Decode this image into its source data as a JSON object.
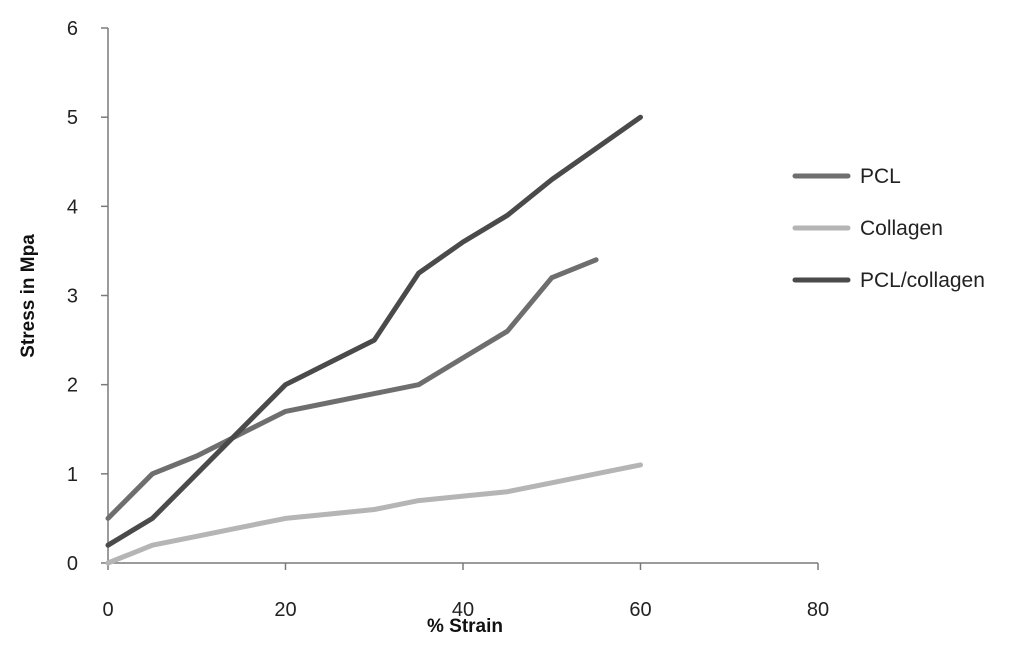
{
  "chart_data": {
    "type": "line",
    "xlabel": "% Strain",
    "ylabel": "Stress in Mpa",
    "xlim": [
      0,
      80
    ],
    "ylim": [
      0,
      6
    ],
    "xticks": [
      "0",
      "20",
      "40",
      "60",
      "80"
    ],
    "yticks": [
      "0",
      "1",
      "2",
      "3",
      "4",
      "5",
      "6"
    ],
    "grid": false,
    "legend_position": "right",
    "series": [
      {
        "name": "PCL",
        "color": "#6e6e6e",
        "x": [
          0,
          5,
          10,
          15,
          20,
          25,
          30,
          35,
          40,
          45,
          50,
          55
        ],
        "y": [
          0.5,
          1.0,
          1.2,
          1.45,
          1.7,
          1.8,
          1.9,
          2.0,
          2.3,
          2.6,
          3.2,
          3.4
        ]
      },
      {
        "name": "Collagen",
        "color": "#b5b5b5",
        "x": [
          0,
          5,
          10,
          15,
          20,
          25,
          30,
          35,
          40,
          45,
          50,
          55,
          60
        ],
        "y": [
          0.0,
          0.2,
          0.3,
          0.4,
          0.5,
          0.55,
          0.6,
          0.7,
          0.75,
          0.8,
          0.9,
          1.0,
          1.1
        ]
      },
      {
        "name": "PCL/collagen",
        "color": "#4a4a4a",
        "x": [
          0,
          5,
          10,
          15,
          20,
          25,
          30,
          35,
          40,
          45,
          50,
          55,
          60
        ],
        "y": [
          0.2,
          0.5,
          1.0,
          1.5,
          2.0,
          2.25,
          2.5,
          3.25,
          3.6,
          3.9,
          4.3,
          4.65,
          5.0
        ]
      }
    ]
  }
}
